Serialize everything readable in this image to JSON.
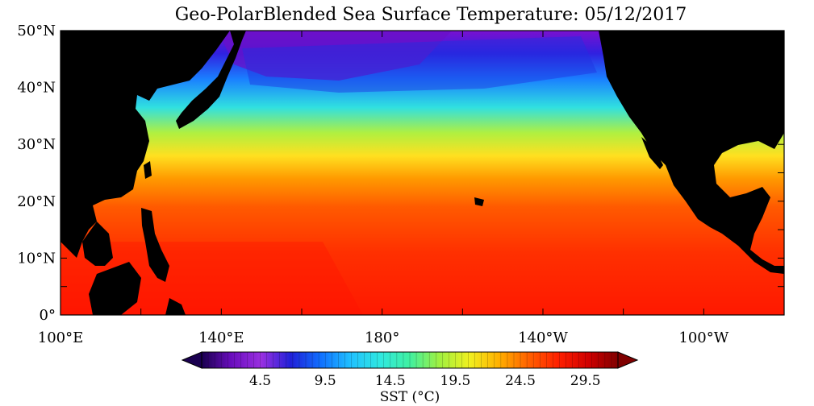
{
  "title": "Geo-PolarBlended Sea Surface Temperature: 05/12/2017",
  "map": {
    "projection": "cylindrical equidistant",
    "lon_range": [
      100,
      280
    ],
    "lat_range": [
      0,
      50
    ],
    "land_color": "#000000",
    "lat_labels": [
      {
        "lat": 50,
        "label": "50°N"
      },
      {
        "lat": 40,
        "label": "40°N"
      },
      {
        "lat": 30,
        "label": "30°N"
      },
      {
        "lat": 20,
        "label": "20°N"
      },
      {
        "lat": 10,
        "label": "10°N"
      },
      {
        "lat": 0,
        "label": "0°"
      }
    ],
    "lon_labels": [
      {
        "lon": 100,
        "label": "100°E"
      },
      {
        "lon": 140,
        "label": "140°E"
      },
      {
        "lon": 180,
        "label": "180°"
      },
      {
        "lon": 220,
        "label": "140°W"
      },
      {
        "lon": 260,
        "label": "100°W"
      }
    ]
  },
  "colorbar": {
    "label": "SST (°C)",
    "min": 0,
    "max": 32,
    "tick_labels": [
      "4.5",
      "9.5",
      "14.5",
      "19.5",
      "24.5",
      "29.5"
    ],
    "tick_values": [
      4.5,
      9.5,
      14.5,
      19.5,
      24.5,
      29.5
    ],
    "colors": [
      "#1a0050",
      "#6a0dbd",
      "#9a30e0",
      "#2020d8",
      "#1070ff",
      "#20c0ff",
      "#30e8e0",
      "#40f0a0",
      "#a0f040",
      "#f0f020",
      "#ffb000",
      "#ff6000",
      "#ff2000",
      "#d00000",
      "#800000"
    ]
  }
}
